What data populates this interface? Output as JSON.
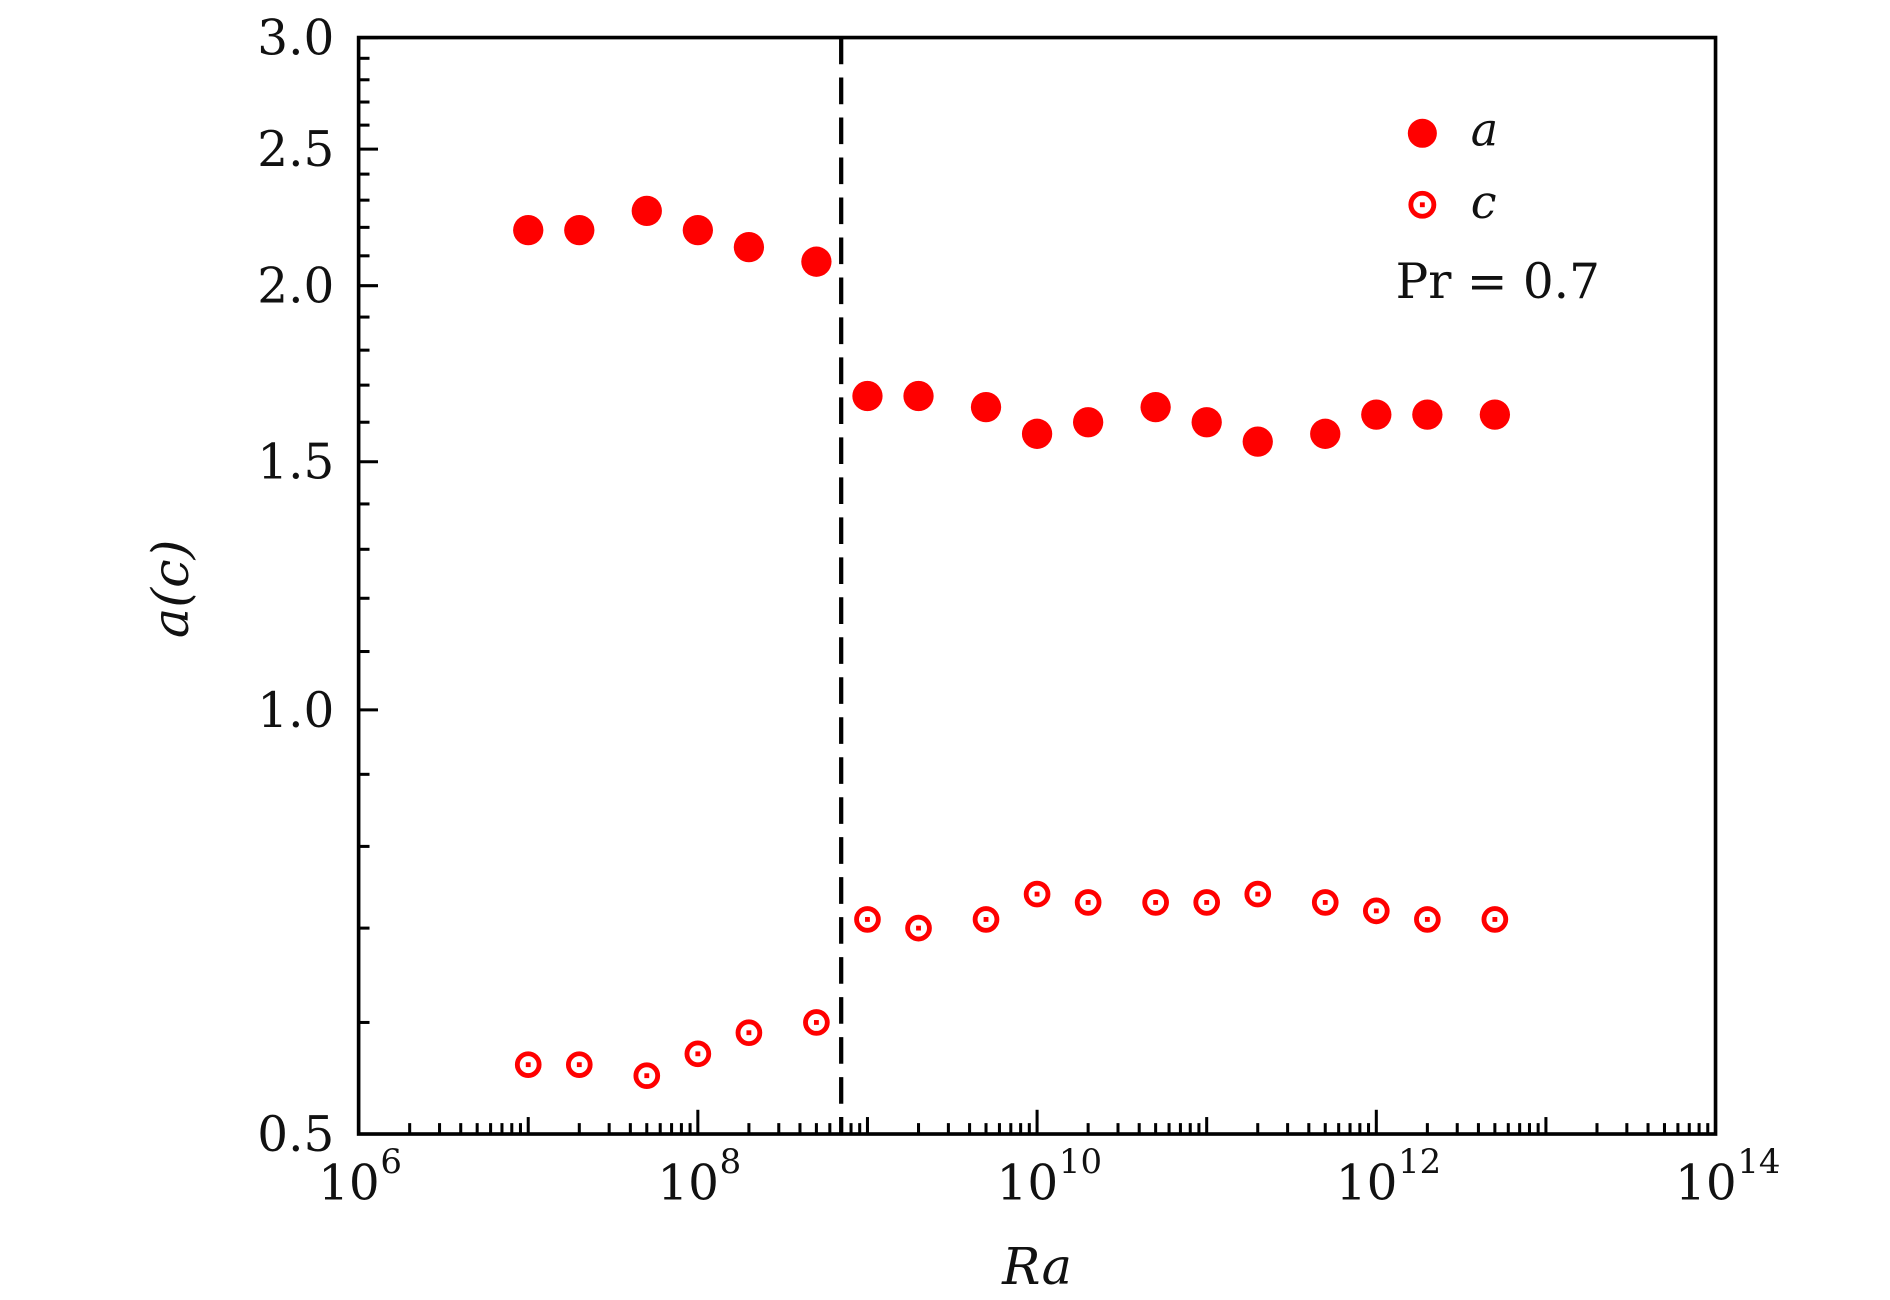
{
  "chart_data": {
    "type": "scatter",
    "xlabel": "Ra",
    "ylabel": "a(c)",
    "xscale": "log",
    "yscale": "log",
    "xlim": [
      1000000.0,
      100000000000000.0
    ],
    "ylim": [
      0.5,
      3.0
    ],
    "x_tick_labels": [
      {
        "base": "10",
        "exp": "6",
        "value": 1000000.0
      },
      {
        "base": "10",
        "exp": "8",
        "value": 100000000.0
      },
      {
        "base": "10",
        "exp": "10",
        "value": 10000000000.0
      },
      {
        "base": "10",
        "exp": "12",
        "value": 1000000000000.0
      },
      {
        "base": "10",
        "exp": "14",
        "value": 100000000000000.0
      }
    ],
    "y_tick_labels": [
      "0.5",
      "1.0",
      "1.5",
      "2.0",
      "2.5",
      "3.0"
    ],
    "x": [
      10000000.0,
      20000000.0,
      50000000.0,
      100000000.0,
      200000000.0,
      500000000.0,
      1000000000.0,
      2000000000.0,
      5000000000.0,
      10000000000.0,
      20000000000.0,
      50000000000.0,
      100000000000.0,
      200000000000.0,
      500000000000.0,
      1000000000000.0,
      2000000000000.0,
      5000000000000.0
    ],
    "series": [
      {
        "name": "a",
        "marker": "filled-circle",
        "color": "#ff0000",
        "values": [
          2.19,
          2.19,
          2.26,
          2.19,
          2.13,
          2.08,
          1.67,
          1.67,
          1.64,
          1.57,
          1.6,
          1.64,
          1.6,
          1.55,
          1.57,
          1.62,
          1.62,
          1.62
        ]
      },
      {
        "name": "c",
        "marker": "ring-with-dot",
        "color": "#ff0000",
        "values": [
          0.56,
          0.56,
          0.55,
          0.57,
          0.59,
          0.6,
          0.71,
          0.7,
          0.71,
          0.74,
          0.73,
          0.73,
          0.73,
          0.74,
          0.73,
          0.72,
          0.71,
          0.71
        ]
      }
    ],
    "vertical_line": {
      "x": 700000000.0,
      "style": "dashed",
      "color": "#000000"
    },
    "annotation": "Pr = 0.7",
    "legend_position": "top-right",
    "grid": false
  }
}
